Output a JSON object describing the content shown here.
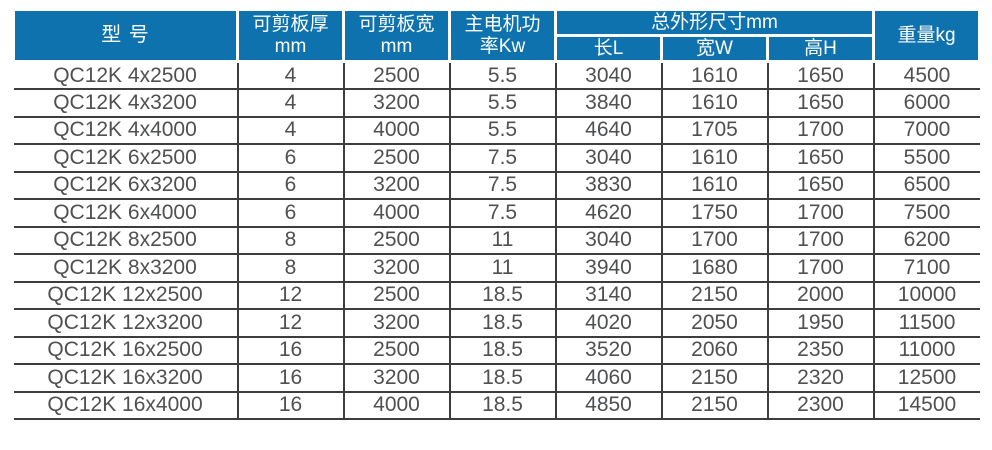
{
  "colors": {
    "header_bg": "#0e72ae",
    "header_text": "#ffffff",
    "body_text": "#4f5052",
    "grid_line": "#3d3d3f"
  },
  "header": {
    "model": "型 号",
    "thickness_l1": "可剪板厚",
    "thickness_l2": "mm",
    "width_l1": "可剪板宽",
    "width_l2": "mm",
    "power_l1": "主电机功",
    "power_l2": "率Kw",
    "dimensions_group": "总外形尺寸mm",
    "length": "长L",
    "width_w": "宽W",
    "height_h": "高H",
    "weight": "重量kg"
  },
  "chart_data": {
    "type": "table",
    "columns": [
      "型 号",
      "可剪板厚mm",
      "可剪板宽mm",
      "主电机功率Kw",
      "总外形尺寸mm 长L",
      "总外形尺寸mm 宽W",
      "总外形尺寸mm 高H",
      "重量kg"
    ],
    "column_group": {
      "label": "总外形尺寸mm",
      "spans": [
        "长L",
        "宽W",
        "高H"
      ]
    },
    "rows": [
      [
        "QC12K 4x2500",
        "4",
        "2500",
        "5.5",
        "3040",
        "1610",
        "1650",
        "4500"
      ],
      [
        "QC12K 4x3200",
        "4",
        "3200",
        "5.5",
        "3840",
        "1610",
        "1650",
        "6000"
      ],
      [
        "QC12K 4x4000",
        "4",
        "4000",
        "5.5",
        "4640",
        "1705",
        "1700",
        "7000"
      ],
      [
        "QC12K 6x2500",
        "6",
        "2500",
        "7.5",
        "3040",
        "1610",
        "1650",
        "5500"
      ],
      [
        "QC12K 6x3200",
        "6",
        "3200",
        "7.5",
        "3830",
        "1610",
        "1650",
        "6500"
      ],
      [
        "QC12K 6x4000",
        "6",
        "4000",
        "7.5",
        "4620",
        "1750",
        "1700",
        "7500"
      ],
      [
        "QC12K 8x2500",
        "8",
        "2500",
        "11",
        "3040",
        "1700",
        "1700",
        "6200"
      ],
      [
        "QC12K 8x3200",
        "8",
        "3200",
        "11",
        "3940",
        "1680",
        "1700",
        "7100"
      ],
      [
        "QC12K 12x2500",
        "12",
        "2500",
        "18.5",
        "3140",
        "2150",
        "2000",
        "10000"
      ],
      [
        "QC12K 12x3200",
        "12",
        "3200",
        "18.5",
        "4020",
        "2050",
        "1950",
        "11500"
      ],
      [
        "QC12K 16x2500",
        "16",
        "2500",
        "18.5",
        "3520",
        "2060",
        "2350",
        "11000"
      ],
      [
        "QC12K 16x3200",
        "16",
        "3200",
        "18.5",
        "4060",
        "2150",
        "2320",
        "12500"
      ],
      [
        "QC12K 16x4000",
        "16",
        "4000",
        "18.5",
        "4850",
        "2150",
        "2300",
        "14500"
      ]
    ]
  }
}
